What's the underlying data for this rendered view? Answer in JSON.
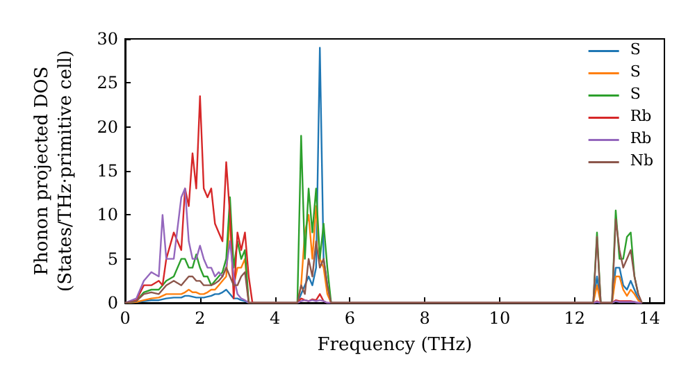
{
  "chart_data": {
    "type": "line",
    "xlabel": "Frequency (THz)",
    "ylabel": "Phonon projected DOS\n(States/THz·primitive cell)",
    "x": [
      0,
      0.3,
      0.5,
      0.7,
      0.9,
      1.0,
      1.1,
      1.3,
      1.5,
      1.6,
      1.7,
      1.8,
      1.9,
      2.0,
      2.1,
      2.2,
      2.3,
      2.4,
      2.5,
      2.6,
      2.7,
      2.8,
      2.9,
      3.0,
      3.1,
      3.2,
      3.3,
      3.4,
      3.5,
      3.6,
      4.5,
      4.6,
      4.7,
      4.8,
      4.9,
      5.0,
      5.1,
      5.2,
      5.3,
      5.4,
      5.5,
      5.6,
      12.4,
      12.5,
      12.6,
      12.7,
      12.8,
      13.0,
      13.1,
      13.2,
      13.3,
      13.4,
      13.5,
      13.6,
      13.7,
      13.8
    ],
    "series": [
      {
        "name": "S",
        "color": "#1f77b4",
        "values": [
          0,
          0.1,
          0.2,
          0.3,
          0.3,
          0.4,
          0.5,
          0.6,
          0.6,
          0.8,
          0.8,
          0.7,
          0.6,
          0.6,
          0.6,
          0.7,
          0.8,
          1,
          1,
          1.2,
          1.5,
          1,
          0.5,
          0.5,
          0.3,
          0.2,
          0,
          0,
          0,
          0,
          0,
          0,
          1,
          2,
          3,
          2,
          4,
          29,
          5,
          2,
          0,
          0,
          0,
          0,
          3,
          0,
          0,
          0,
          4,
          4,
          2,
          1.5,
          2.5,
          1.5,
          0.5,
          0
        ]
      },
      {
        "name": "S",
        "color": "#ff7f0e",
        "values": [
          0,
          0.1,
          0.3,
          0.5,
          0.6,
          0.8,
          1,
          1,
          1,
          1.2,
          1.5,
          1.2,
          1.2,
          1,
          1,
          1.2,
          1.5,
          1.5,
          2,
          2.5,
          3,
          10,
          2,
          4,
          4,
          5,
          0,
          0,
          0,
          0,
          0,
          0,
          2,
          8,
          10,
          5,
          11,
          5,
          4,
          1,
          0,
          0,
          0,
          0,
          2,
          0,
          0,
          0,
          3,
          3,
          1.5,
          0.8,
          1.5,
          1,
          0.3,
          0
        ]
      },
      {
        "name": "S",
        "color": "#2ca02c",
        "values": [
          0,
          0.2,
          1.2,
          1.5,
          1.5,
          2,
          2.5,
          3,
          5,
          5,
          4,
          4,
          5.5,
          4,
          3,
          3,
          2,
          2.5,
          3,
          3.5,
          5,
          12,
          4,
          7,
          5,
          6,
          0,
          0,
          0,
          0,
          0,
          0,
          19,
          5,
          13,
          8,
          13,
          5,
          9,
          4,
          0,
          0,
          0,
          0,
          8,
          0,
          0,
          0,
          10.5,
          5,
          5,
          7.5,
          8,
          3,
          1,
          null
        ]
      },
      {
        "name": "Rb",
        "color": "#d62728",
        "values": [
          0,
          0.3,
          2,
          2,
          2.5,
          2,
          5,
          8,
          6,
          13,
          11,
          17,
          13,
          23.5,
          13,
          12,
          13,
          9,
          8,
          7,
          16,
          10,
          0.5,
          8,
          6,
          8,
          3,
          0,
          0,
          0,
          0,
          0,
          0.5,
          0.3,
          0.2,
          0.4,
          0.3,
          1,
          0.2,
          0,
          0,
          0,
          0,
          0,
          0.2,
          0,
          0,
          0,
          0.3,
          0.2,
          0.2,
          0.2,
          0.2,
          0.1,
          0,
          0
        ]
      },
      {
        "name": "Rb",
        "color": "#9467bd",
        "values": [
          0,
          0.5,
          2.5,
          3.5,
          3,
          10,
          5,
          5,
          12,
          13,
          7,
          5,
          5,
          6.5,
          5,
          4,
          4,
          3,
          3.5,
          3,
          4,
          7,
          3,
          1,
          0.5,
          0.3,
          0,
          0,
          0,
          0,
          0,
          0,
          0.2,
          0.3,
          0.2,
          0.3,
          0.2,
          0.3,
          0.2,
          0,
          0,
          0,
          0,
          0,
          0.1,
          0,
          0,
          0,
          0.2,
          0.1,
          0.1,
          0.1,
          0.1,
          0.1,
          0,
          0
        ]
      },
      {
        "name": "Nb",
        "color": "#8c564b",
        "values": [
          0,
          0.2,
          1,
          1.2,
          1,
          1.5,
          2,
          2.5,
          2,
          2.5,
          3,
          3,
          2.5,
          2.5,
          2,
          2,
          2,
          2.2,
          2.5,
          3,
          4,
          3,
          2,
          2,
          3,
          3.5,
          0,
          0,
          0,
          0,
          0,
          0,
          2,
          1,
          5,
          3,
          7,
          4,
          5,
          2,
          0,
          0,
          0,
          0,
          7.5,
          0,
          0,
          0,
          9.5,
          6,
          4,
          5,
          6,
          3,
          1,
          0
        ]
      }
    ],
    "xlim": [
      0,
      14.4
    ],
    "xticks": [
      0,
      2,
      4,
      6,
      8,
      10,
      12,
      14
    ],
    "ylim": [
      0,
      30
    ],
    "yticks": [
      0,
      5,
      10,
      15,
      20,
      25,
      30
    ],
    "grid": false,
    "legend": "top right",
    "marker": "none",
    "line_style": "solid"
  }
}
